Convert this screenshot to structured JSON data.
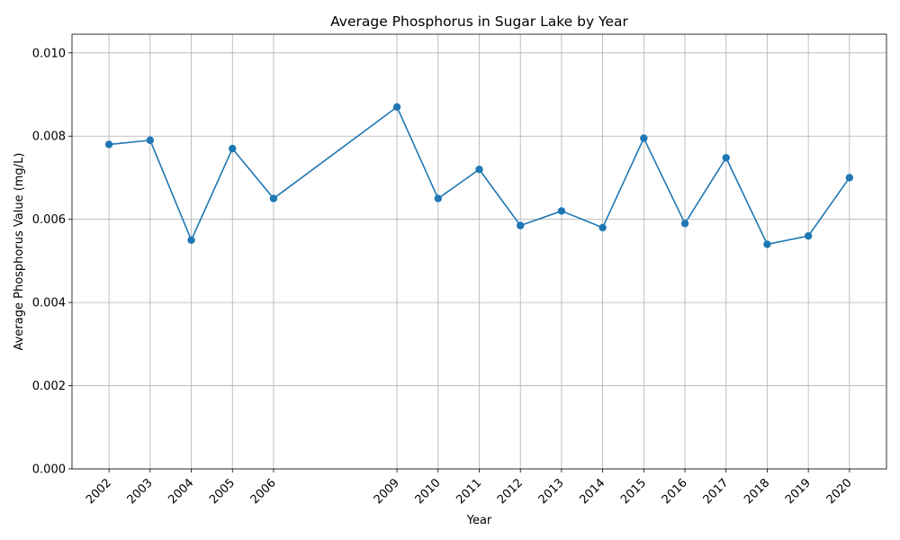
{
  "chart_data": {
    "type": "line",
    "title": "Average Phosphorus in Sugar Lake by Year",
    "xlabel": "Year",
    "ylabel": "Average Phosphorus Value (mg/L)",
    "x": [
      2002,
      2003,
      2004,
      2005,
      2006,
      2009,
      2010,
      2011,
      2012,
      2013,
      2014,
      2015,
      2016,
      2017,
      2018,
      2019,
      2020
    ],
    "series": [
      {
        "values": [
          0.0078,
          0.0079,
          0.0055,
          0.0077,
          0.0065,
          0.0087,
          0.0065,
          0.0072,
          0.00585,
          0.0062,
          0.0058,
          0.00795,
          0.0059,
          0.00748,
          0.0054,
          0.0056,
          0.007
        ],
        "color": "#1f77b4",
        "marker": "circle"
      }
    ],
    "xticks": [
      "2002",
      "2003",
      "2004",
      "2005",
      "2006",
      "2009",
      "2010",
      "2011",
      "2012",
      "2013",
      "2014",
      "2015",
      "2016",
      "2017",
      "2018",
      "2019",
      "2020"
    ],
    "yticks": [
      "0.000",
      "0.002",
      "0.004",
      "0.006",
      "0.008",
      "0.010"
    ],
    "ylim": [
      0,
      0.01045
    ],
    "xlim": [
      2001.1,
      2020.9
    ],
    "grid": true,
    "legend": "none"
  }
}
